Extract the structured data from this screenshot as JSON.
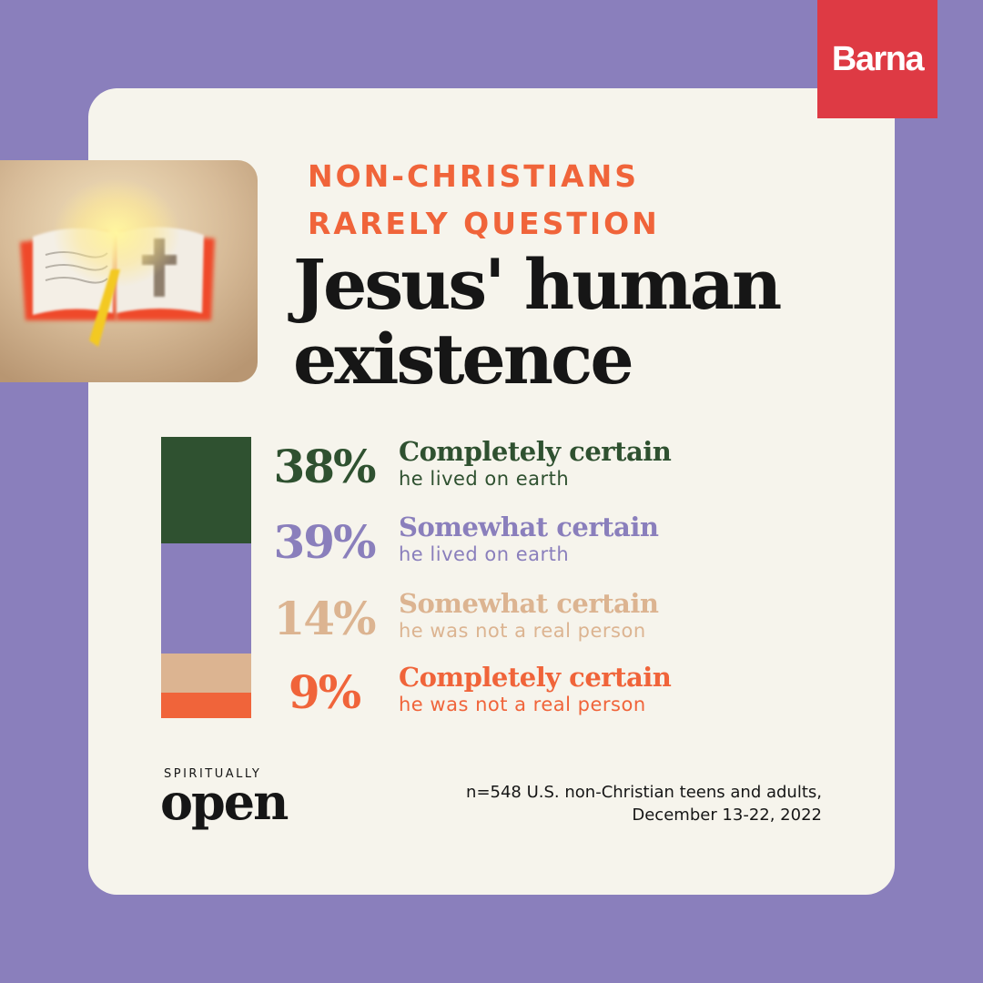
{
  "brand": {
    "logo_text": "Barna"
  },
  "heading": {
    "kicker_lines": [
      "NON-CHRISTIANS",
      "RARELY QUESTION"
    ],
    "title_lines": [
      "Jesus' human",
      "existence"
    ]
  },
  "colors": {
    "background": "#8a7fbc",
    "card": "#f6f4ec",
    "brand_red": "#de3a44",
    "accent_orange": "#f0643a",
    "title_black": "#161616"
  },
  "chart_data": {
    "type": "bar",
    "stacked": true,
    "orientation": "vertical",
    "unit": "%",
    "categories": [
      "Completely certain he lived on earth",
      "Somewhat certain he lived on earth",
      "Somewhat certain he was not a real person",
      "Completely certain he was not a real person"
    ],
    "series": [
      {
        "value": 38,
        "pct_label": "38%",
        "label_main": "Completely certain",
        "label_sub": "he lived on earth",
        "color": "#2f5130",
        "text_color": "#2f5130"
      },
      {
        "value": 39,
        "pct_label": "39%",
        "label_main": "Somewhat certain",
        "label_sub": "he lived on earth",
        "color": "#8a7fbc",
        "text_color": "#8a7fbc"
      },
      {
        "value": 14,
        "pct_label": "14%",
        "label_main": "Somewhat certain",
        "label_sub": "he was not a real person",
        "color": "#dcb491",
        "text_color": "#dcb491"
      },
      {
        "value": 9,
        "pct_label": "9%",
        "label_main": "Completely certain",
        "label_sub": "he was not a real person",
        "color": "#f0643a",
        "text_color": "#f0643a"
      }
    ]
  },
  "footer": {
    "logo_small": "SPIRITUALLY",
    "logo_big": "open",
    "source_lines": [
      "n=548 U.S. non-Christian teens and adults,",
      "December 13-22, 2022"
    ]
  }
}
